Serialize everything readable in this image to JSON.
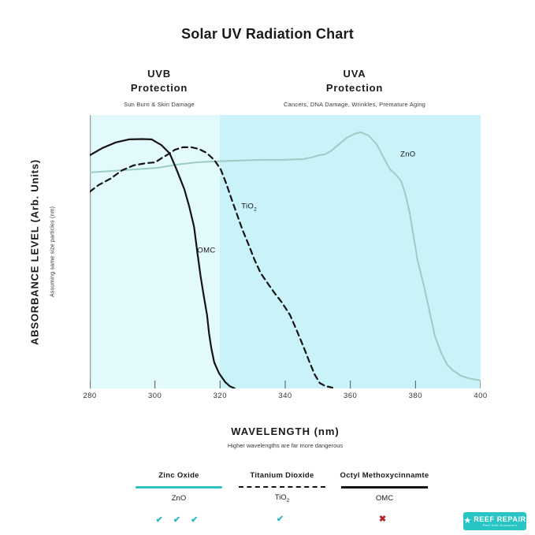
{
  "title": "Solar UV Radiation Chart",
  "band_headers": {
    "uvb": {
      "line1": "UVB",
      "line2": "Protection",
      "sub": "Sun Burn & Skin Damage"
    },
    "uva": {
      "line1": "UVA",
      "line2": "Protection",
      "sub": "Cancers, DNA Damage, Wrinkles, Premature Aging"
    }
  },
  "y_axis": {
    "label": "ABSORBANCE LEVEL (Arb. Units)",
    "sublabel": "Assuming same size particles (nm)"
  },
  "x_axis": {
    "label": "WAVELENGTH (nm)",
    "sublabel": "Higher wavelengths are far more dangerous"
  },
  "chart_data": {
    "type": "line",
    "title": "Solar UV Radiation Chart",
    "xlabel": "WAVELENGTH (nm)",
    "ylabel": "ABSORBANCE LEVEL (Arb. Units)",
    "xlim": [
      280,
      400
    ],
    "ylim": [
      0,
      1
    ],
    "x_ticks": [
      280,
      300,
      320,
      340,
      360,
      380,
      400
    ],
    "grid": false,
    "bands": [
      {
        "id": "uvb",
        "label": "UVB",
        "from": 280,
        "to": 320,
        "color": "#e2fafb"
      },
      {
        "id": "uva",
        "label": "UVA",
        "from": 320,
        "to": 400,
        "color": "#c9f3f9"
      }
    ],
    "axis_color": "#9a9a9a",
    "tick_color": "#555555",
    "series": [
      {
        "id": "zno",
        "name": "ZnO (Zinc Oxide)",
        "color": "#9bccc5",
        "width": 2,
        "dash": "",
        "points": [
          [
            280,
            0.79
          ],
          [
            286.3,
            0.795
          ],
          [
            293.5,
            0.801
          ],
          [
            300.8,
            0.807
          ],
          [
            306.9,
            0.819
          ],
          [
            312.9,
            0.827
          ],
          [
            317.7,
            0.83
          ],
          [
            325,
            0.833
          ],
          [
            332.3,
            0.836
          ],
          [
            339.5,
            0.836
          ],
          [
            345.6,
            0.839
          ],
          [
            348,
            0.845
          ],
          [
            350.4,
            0.853
          ],
          [
            352.1,
            0.856
          ],
          [
            354,
            0.868
          ],
          [
            356.5,
            0.893
          ],
          [
            358.9,
            0.917
          ],
          [
            361.3,
            0.931
          ],
          [
            363.2,
            0.937
          ],
          [
            365.6,
            0.925
          ],
          [
            368.1,
            0.893
          ],
          [
            370.2,
            0.845
          ],
          [
            372.2,
            0.801
          ],
          [
            374.1,
            0.781
          ],
          [
            375.6,
            0.758
          ],
          [
            376.8,
            0.715
          ],
          [
            378.2,
            0.643
          ],
          [
            379.4,
            0.556
          ],
          [
            380.6,
            0.47
          ],
          [
            382.6,
            0.375
          ],
          [
            384.3,
            0.282
          ],
          [
            386,
            0.19
          ],
          [
            387.9,
            0.13
          ],
          [
            389.8,
            0.086
          ],
          [
            391.5,
            0.066
          ],
          [
            394,
            0.046
          ],
          [
            396.4,
            0.037
          ],
          [
            400,
            0.029
          ]
        ]
      },
      {
        "id": "tio2",
        "name": "TiO2 (Titanium Dioxide)",
        "color": "#141414",
        "width": 2.2,
        "dash": "7 5",
        "points": [
          [
            280,
            0.72
          ],
          [
            282.7,
            0.744
          ],
          [
            286.3,
            0.767
          ],
          [
            289.9,
            0.798
          ],
          [
            293.5,
            0.816
          ],
          [
            297.2,
            0.824
          ],
          [
            300.1,
            0.827
          ],
          [
            302,
            0.842
          ],
          [
            304,
            0.856
          ],
          [
            306.1,
            0.873
          ],
          [
            308.5,
            0.882
          ],
          [
            311.2,
            0.882
          ],
          [
            313.4,
            0.876
          ],
          [
            315.8,
            0.862
          ],
          [
            318.2,
            0.836
          ],
          [
            320.2,
            0.801
          ],
          [
            321.9,
            0.749
          ],
          [
            323.3,
            0.7
          ],
          [
            325,
            0.643
          ],
          [
            326.9,
            0.579
          ],
          [
            328.9,
            0.522
          ],
          [
            330.6,
            0.47
          ],
          [
            332.5,
            0.421
          ],
          [
            334.7,
            0.383
          ],
          [
            336.9,
            0.346
          ],
          [
            339,
            0.314
          ],
          [
            341.5,
            0.268
          ],
          [
            343.6,
            0.21
          ],
          [
            345.6,
            0.153
          ],
          [
            347.3,
            0.101
          ],
          [
            349,
            0.052
          ],
          [
            350.6,
            0.02
          ],
          [
            352.3,
            0.009
          ],
          [
            354.5,
            0.003
          ]
        ]
      },
      {
        "id": "omc",
        "name": "OMC (Octyl Methoxycinnamte)",
        "color": "#141414",
        "width": 2.2,
        "dash": "",
        "points": [
          [
            280,
            0.853
          ],
          [
            284,
            0.88
          ],
          [
            288,
            0.9
          ],
          [
            292,
            0.911
          ],
          [
            296,
            0.912
          ],
          [
            299,
            0.911
          ],
          [
            302,
            0.89
          ],
          [
            304.5,
            0.86
          ],
          [
            306.5,
            0.805
          ],
          [
            309,
            0.729
          ],
          [
            310.5,
            0.666
          ],
          [
            312,
            0.591
          ],
          [
            313,
            0.499
          ],
          [
            314,
            0.412
          ],
          [
            315,
            0.337
          ],
          [
            316,
            0.268
          ],
          [
            316.6,
            0.202
          ],
          [
            317.3,
            0.147
          ],
          [
            318.2,
            0.095
          ],
          [
            319.7,
            0.055
          ],
          [
            321.6,
            0.023
          ],
          [
            323,
            0.008
          ],
          [
            324.5,
            0.0
          ]
        ]
      }
    ],
    "annotations": [
      {
        "id": "curve-label-omc",
        "text": "OMC",
        "sub": "",
        "nm": 315.8,
        "v": 0.504
      },
      {
        "id": "curve-label-tio2",
        "text": "TiO",
        "sub": "2",
        "nm": 328.9,
        "v": 0.663
      },
      {
        "id": "curve-label-zno",
        "text": "ZnO",
        "sub": "",
        "nm": 377.7,
        "v": 0.856
      }
    ]
  },
  "legend": {
    "columns": [
      {
        "title": "Zinc Oxide",
        "abbr_base": "ZnO",
        "abbr_sub": "",
        "line_style": "solid-teal",
        "marks": "✔ ✔ ✔",
        "marks_color": "#2bb8c0"
      },
      {
        "title": "Titanium Dioxide",
        "abbr_base": "TiO",
        "abbr_sub": "2",
        "line_style": "dashed-black",
        "marks": "✔",
        "marks_color": "#2bb8c0"
      },
      {
        "title": "Octyl Methoxycinnamte",
        "abbr_base": "OMC",
        "abbr_sub": "",
        "line_style": "solid-black",
        "marks": "✖",
        "marks_color": "#b5232a"
      }
    ]
  },
  "logo": {
    "star": "★",
    "text": "REEF REPAIR",
    "tagline": "Reef Safe Sunscreen",
    "bg_color": "#29c5c5"
  }
}
